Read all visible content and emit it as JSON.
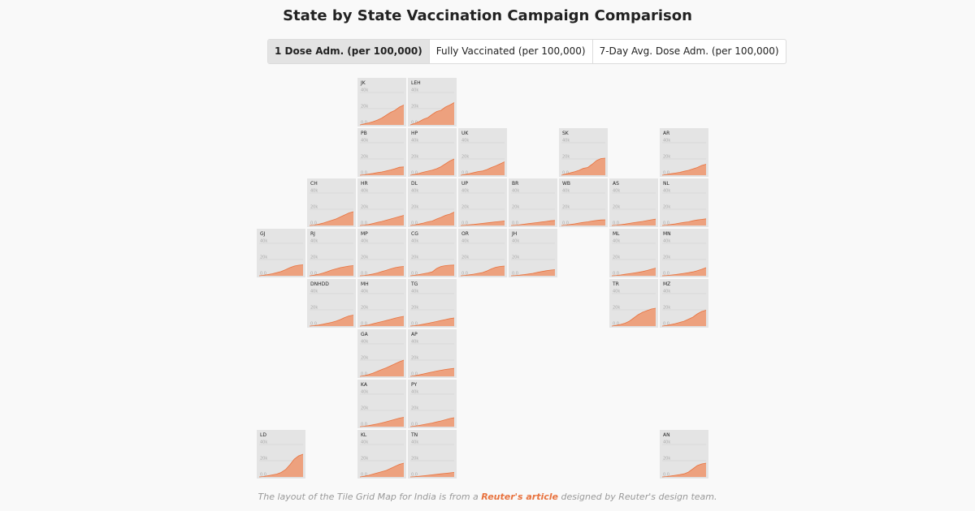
{
  "title": "State by State Vaccination Campaign Comparison",
  "tabs": [
    {
      "label": "1 Dose Adm. (per 100,000)",
      "active": true
    },
    {
      "label": "Fully Vaccinated (per 100,000)",
      "active": false
    },
    {
      "label": "7-Day Avg. Dose Adm. (per 100,000)",
      "active": false
    }
  ],
  "footer": {
    "pre": "The layout of the Tile Grid Map for India is from a ",
    "link": "Reuter's article",
    "post": " designed by Reuter's design team."
  },
  "colors": {
    "area_fill": "#eda17e",
    "area_stroke": "#e8733f",
    "tile_bg": "#e4e4e4",
    "gridline": "#cfcfcf"
  },
  "chart_data": {
    "type": "area",
    "layout": "tile-grid-map",
    "y_ticks": [
      "40k",
      "20k",
      "0.0"
    ],
    "ylim": [
      0,
      48000
    ],
    "tiles": [
      {
        "code": "JK",
        "col": 2,
        "row": 0,
        "values": [
          0,
          1200,
          2500,
          4000,
          6000,
          8500,
          12000,
          15500,
          18000,
          22000,
          24500
        ]
      },
      {
        "code": "LEH",
        "col": 3,
        "row": 0,
        "values": [
          0,
          1800,
          4000,
          7000,
          9000,
          13000,
          16500,
          18000,
          22000,
          24500,
          27500
        ]
      },
      {
        "code": "PB",
        "col": 2,
        "row": 1,
        "values": [
          0,
          500,
          1500,
          2200,
          3200,
          4000,
          5200,
          6500,
          8000,
          9800,
          10200
        ]
      },
      {
        "code": "HP",
        "col": 3,
        "row": 1,
        "values": [
          0,
          1000,
          2200,
          3800,
          5000,
          6200,
          8000,
          10500,
          14000,
          17500,
          20000
        ]
      },
      {
        "code": "UK",
        "col": 4,
        "row": 1,
        "values": [
          0,
          800,
          2000,
          3200,
          4500,
          5200,
          7000,
          9500,
          11500,
          14000,
          16500
        ]
      },
      {
        "code": "SK",
        "col": 6,
        "row": 1,
        "values": [
          0,
          1500,
          2800,
          4200,
          6000,
          8500,
          9500,
          13500,
          18000,
          20500,
          21000
        ]
      },
      {
        "code": "AR",
        "col": 8,
        "row": 1,
        "values": [
          0,
          900,
          1800,
          2600,
          3500,
          4800,
          6000,
          7800,
          9500,
          12000,
          13500
        ]
      },
      {
        "code": "CH",
        "col": 1,
        "row": 2,
        "values": [
          0,
          400,
          1500,
          2800,
          4500,
          6200,
          8000,
          10500,
          13000,
          15500,
          17000
        ]
      },
      {
        "code": "HR",
        "col": 2,
        "row": 2,
        "values": [
          0,
          500,
          1200,
          2500,
          3800,
          5000,
          6500,
          8000,
          9500,
          11000,
          12500
        ]
      },
      {
        "code": "DL",
        "col": 3,
        "row": 2,
        "values": [
          0,
          600,
          1800,
          3000,
          4500,
          5500,
          8000,
          10000,
          12500,
          14000,
          16500
        ]
      },
      {
        "code": "UP",
        "col": 4,
        "row": 2,
        "values": [
          0,
          300,
          800,
          1300,
          2000,
          2600,
          3200,
          3800,
          4500,
          5000,
          5600
        ]
      },
      {
        "code": "BR",
        "col": 5,
        "row": 2,
        "values": [
          0,
          300,
          900,
          1600,
          2400,
          3000,
          3600,
          4300,
          5000,
          5800,
          6200
        ]
      },
      {
        "code": "WB",
        "col": 6,
        "row": 2,
        "values": [
          0,
          500,
          1200,
          2000,
          3000,
          3800,
          4500,
          5500,
          6200,
          6800,
          7000
        ]
      },
      {
        "code": "AS",
        "col": 7,
        "row": 2,
        "values": [
          0,
          400,
          1000,
          1700,
          2600,
          3500,
          4200,
          5000,
          6000,
          7000,
          7800
        ]
      },
      {
        "code": "NL",
        "col": 8,
        "row": 2,
        "values": [
          0,
          500,
          1200,
          2000,
          3000,
          3800,
          4500,
          5800,
          6800,
          7500,
          8200
        ]
      },
      {
        "code": "GJ",
        "col": 0,
        "row": 3,
        "values": [
          0,
          600,
          1500,
          2500,
          3800,
          5200,
          7500,
          10000,
          12000,
          13000,
          13500
        ]
      },
      {
        "code": "RJ",
        "col": 1,
        "row": 3,
        "values": [
          0,
          700,
          1800,
          3200,
          5000,
          7000,
          8500,
          10000,
          11000,
          12000,
          12500
        ]
      },
      {
        "code": "MP",
        "col": 2,
        "row": 3,
        "values": [
          0,
          400,
          1200,
          2200,
          3500,
          5200,
          6800,
          8500,
          10000,
          11000,
          11500
        ]
      },
      {
        "code": "CG",
        "col": 3,
        "row": 3,
        "values": [
          0,
          600,
          1500,
          2500,
          3500,
          4800,
          9000,
          11500,
          12500,
          13000,
          13200
        ]
      },
      {
        "code": "OR",
        "col": 4,
        "row": 3,
        "values": [
          0,
          500,
          1200,
          2000,
          3000,
          4000,
          6000,
          8500,
          10500,
          11500,
          12000
        ]
      },
      {
        "code": "JH",
        "col": 5,
        "row": 3,
        "values": [
          0,
          300,
          800,
          1500,
          2200,
          3000,
          4200,
          5200,
          6200,
          7000,
          7500
        ]
      },
      {
        "code": "ML",
        "col": 7,
        "row": 3,
        "values": [
          0,
          400,
          1000,
          1800,
          2600,
          3400,
          4200,
          5200,
          6500,
          8000,
          9500
        ]
      },
      {
        "code": "MN",
        "col": 8,
        "row": 3,
        "values": [
          0,
          300,
          900,
          1500,
          2200,
          3000,
          3800,
          4800,
          6200,
          8000,
          10000
        ]
      },
      {
        "code": "DNHDD",
        "col": 1,
        "row": 4,
        "values": [
          0,
          500,
          1200,
          2200,
          3400,
          4500,
          6000,
          8000,
          10500,
          12500,
          13500
        ]
      },
      {
        "code": "MH",
        "col": 2,
        "row": 4,
        "values": [
          0,
          600,
          1500,
          2800,
          4200,
          5500,
          6800,
          8200,
          9800,
          11000,
          12000
        ]
      },
      {
        "code": "TG",
        "col": 3,
        "row": 4,
        "values": [
          0,
          500,
          1300,
          2300,
          3400,
          4500,
          5600,
          6800,
          8000,
          9200,
          10000
        ]
      },
      {
        "code": "TR",
        "col": 7,
        "row": 4,
        "values": [
          0,
          800,
          2000,
          3500,
          6000,
          10000,
          14000,
          17000,
          19000,
          21000,
          22000
        ]
      },
      {
        "code": "MZ",
        "col": 8,
        "row": 4,
        "values": [
          0,
          700,
          1800,
          3000,
          4500,
          6000,
          8500,
          11000,
          15000,
          18000,
          19500
        ]
      },
      {
        "code": "GA",
        "col": 2,
        "row": 5,
        "values": [
          0,
          800,
          2200,
          4000,
          6200,
          8500,
          10500,
          13000,
          15500,
          18000,
          20000
        ]
      },
      {
        "code": "AP",
        "col": 3,
        "row": 5,
        "values": [
          0,
          700,
          1800,
          3000,
          4200,
          5400,
          6500,
          7500,
          8500,
          9200,
          9800
        ]
      },
      {
        "code": "KA",
        "col": 2,
        "row": 6,
        "values": [
          0,
          500,
          1300,
          2300,
          3400,
          4600,
          6000,
          7500,
          9000,
          10500,
          11500
        ]
      },
      {
        "code": "PY",
        "col": 3,
        "row": 6,
        "values": [
          0,
          600,
          1500,
          2500,
          3500,
          4500,
          5800,
          7000,
          8500,
          10000,
          11000
        ]
      },
      {
        "code": "LD",
        "col": 0,
        "row": 7,
        "values": [
          0,
          500,
          1500,
          2500,
          3500,
          5500,
          9000,
          15000,
          22000,
          26000,
          28000
        ]
      },
      {
        "code": "KL",
        "col": 2,
        "row": 7,
        "values": [
          0,
          800,
          2000,
          3500,
          5000,
          6500,
          8000,
          10500,
          13000,
          15500,
          17000
        ]
      },
      {
        "code": "TN",
        "col": 3,
        "row": 7,
        "values": [
          0,
          300,
          800,
          1400,
          2000,
          2600,
          3200,
          3800,
          4400,
          5000,
          5600
        ]
      },
      {
        "code": "AN",
        "col": 8,
        "row": 7,
        "values": [
          0,
          500,
          1200,
          2000,
          2800,
          3800,
          6000,
          10000,
          14000,
          16000,
          17000
        ]
      }
    ]
  }
}
